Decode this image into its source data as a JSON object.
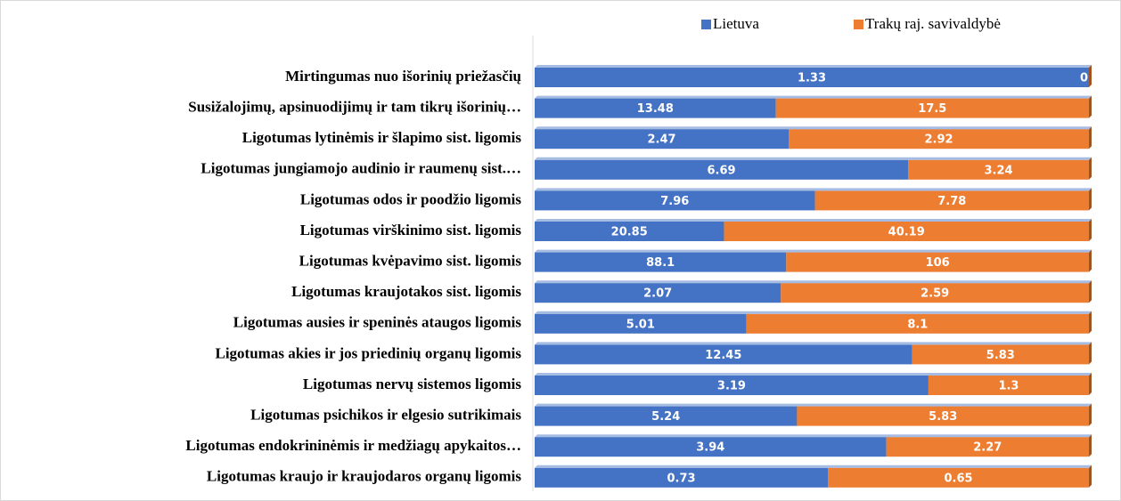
{
  "chart_data": {
    "type": "bar",
    "orientation": "horizontal",
    "stacked": "percent",
    "categories": [
      "Mirtingumas nuo išorinių priežasčių",
      "Susižalojimų, apsinuodijimų ir tam tikrų išorinių…",
      "Ligotumas lytinėmis ir šlapimo sist. ligomis",
      "Ligotumas jungiamojo audinio ir raumenų sist.…",
      "Ligotumas odos ir poodžio ligomis",
      "Ligotumas virškinimo sist. ligomis",
      "Ligotumas kvėpavimo sist. ligomis",
      "Ligotumas kraujotakos sist. ligomis",
      "Ligotumas ausies ir speninės ataugos ligomis",
      "Ligotumas akies ir jos priedinių organų ligomis",
      "Ligotumas nervų sistemos ligomis",
      "Ligotumas psichikos ir elgesio sutrikimais",
      "Ligotumas endokrininėmis ir medžiagų apykaitos…",
      "Ligotumas kraujo ir kraujodaros organų ligomis"
    ],
    "series": [
      {
        "name": "Lietuva",
        "color": "#4472c4",
        "values": [
          1.33,
          13.48,
          2.47,
          6.69,
          7.96,
          20.85,
          88.1,
          2.07,
          5.01,
          12.45,
          3.19,
          5.24,
          3.94,
          0.73
        ]
      },
      {
        "name": "Trakų raj. savivaldybė",
        "color": "#ed7d31",
        "values": [
          0,
          17.5,
          2.92,
          3.24,
          7.78,
          40.19,
          106,
          2.59,
          8.1,
          5.83,
          1.3,
          5.83,
          2.27,
          0.65
        ]
      }
    ],
    "legend": "top"
  }
}
